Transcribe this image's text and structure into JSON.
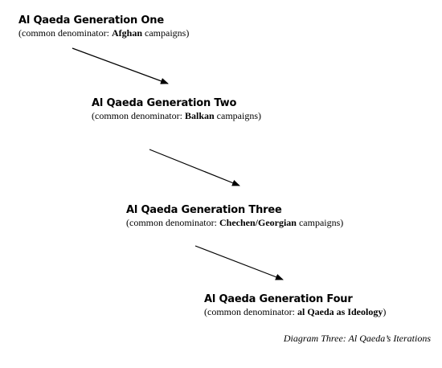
{
  "generations": [
    {
      "title": "Al Qaeda Generation One",
      "subtitle_prefix": "(common denominator: ",
      "subtitle_bold": "Afghan",
      "subtitle_suffix": " campaigns)"
    },
    {
      "title": "Al Qaeda Generation Two",
      "subtitle_prefix": "(common denominator: ",
      "subtitle_bold": "Balkan",
      "subtitle_suffix": " campaigns)"
    },
    {
      "title": "Al Qaeda Generation Three",
      "subtitle_prefix": "(common denominator: ",
      "subtitle_bold": "Chechen/Georgian",
      "subtitle_suffix": " campaigns)"
    },
    {
      "title": "Al Qaeda Generation Four",
      "subtitle_prefix": "(common denominator: ",
      "subtitle_bold": "al Qaeda as Ideology",
      "subtitle_suffix": ")"
    }
  ],
  "caption": "Diagram Three: Al Qaeda’s Iterations",
  "colors": {
    "text": "#000000",
    "arrow": "#000000",
    "background": "#ffffff"
  }
}
